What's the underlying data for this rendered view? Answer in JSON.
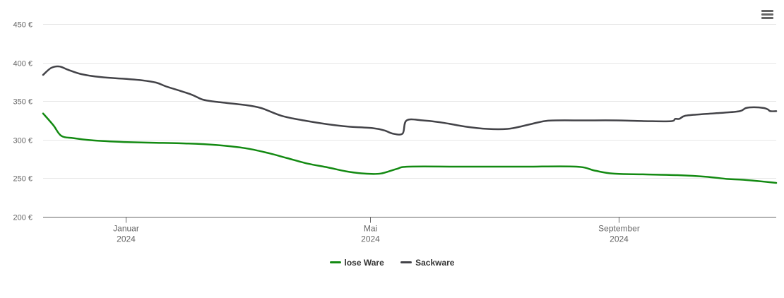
{
  "menu": {
    "icon": "hamburger-menu-icon"
  },
  "chart_data": {
    "type": "line",
    "title": "",
    "xlabel": "",
    "ylabel": "",
    "ylim": [
      200,
      450
    ],
    "yticks": [
      200,
      250,
      300,
      350,
      400,
      450
    ],
    "ytick_labels": [
      "200 €",
      "250 €",
      "300 €",
      "350 €",
      "400 €",
      "450 €"
    ],
    "xlim": [
      "2023-11-21",
      "2024-11-18"
    ],
    "xticks": [
      {
        "date": "2024-01-01",
        "label": "Januar",
        "year": "2024"
      },
      {
        "date": "2024-05-01",
        "label": "Mai",
        "year": "2024"
      },
      {
        "date": "2024-09-01",
        "label": "September",
        "year": "2024"
      }
    ],
    "grid": true,
    "legend_position": "bottom-center",
    "series": [
      {
        "name": "lose Ware",
        "color": "#138a12",
        "points": [
          [
            "2023-11-21",
            334
          ],
          [
            "2023-11-26",
            319
          ],
          [
            "2023-11-30",
            305
          ],
          [
            "2023-12-06",
            302
          ],
          [
            "2023-12-16",
            299
          ],
          [
            "2023-12-31",
            297
          ],
          [
            "2024-01-16",
            296
          ],
          [
            "2024-02-01",
            295
          ],
          [
            "2024-02-15",
            293
          ],
          [
            "2024-02-29",
            289
          ],
          [
            "2024-03-11",
            283
          ],
          [
            "2024-03-21",
            276
          ],
          [
            "2024-03-31",
            269
          ],
          [
            "2024-04-10",
            264
          ],
          [
            "2024-04-19",
            259
          ],
          [
            "2024-04-28",
            256
          ],
          [
            "2024-05-06",
            256
          ],
          [
            "2024-05-14",
            262
          ],
          [
            "2024-05-20",
            265
          ],
          [
            "2024-06-15",
            265
          ],
          [
            "2024-07-15",
            265
          ],
          [
            "2024-08-11",
            265
          ],
          [
            "2024-08-20",
            260
          ],
          [
            "2024-08-29",
            256
          ],
          [
            "2024-09-13",
            255
          ],
          [
            "2024-09-30",
            254
          ],
          [
            "2024-10-14",
            252
          ],
          [
            "2024-10-25",
            249
          ],
          [
            "2024-11-02",
            248
          ],
          [
            "2024-11-18",
            244
          ]
        ]
      },
      {
        "name": "Sackware",
        "color": "#434348",
        "points": [
          [
            "2023-11-21",
            384
          ],
          [
            "2023-11-25",
            393
          ],
          [
            "2023-11-29",
            395
          ],
          [
            "2023-12-03",
            391
          ],
          [
            "2023-12-10",
            385
          ],
          [
            "2023-12-20",
            381
          ],
          [
            "2023-12-31",
            379
          ],
          [
            "2024-01-09",
            377
          ],
          [
            "2024-01-16",
            374
          ],
          [
            "2024-01-21",
            369
          ],
          [
            "2024-02-02",
            359
          ],
          [
            "2024-02-08",
            352
          ],
          [
            "2024-02-15",
            349
          ],
          [
            "2024-02-29",
            345
          ],
          [
            "2024-03-08",
            341
          ],
          [
            "2024-03-18",
            331
          ],
          [
            "2024-03-29",
            325
          ],
          [
            "2024-04-10",
            320
          ],
          [
            "2024-04-20",
            317
          ],
          [
            "2024-05-02",
            315
          ],
          [
            "2024-05-08",
            312
          ],
          [
            "2024-05-12",
            308
          ],
          [
            "2024-05-17",
            308
          ],
          [
            "2024-05-19",
            325
          ],
          [
            "2024-05-27",
            325
          ],
          [
            "2024-06-06",
            322
          ],
          [
            "2024-06-17",
            317
          ],
          [
            "2024-06-28",
            314
          ],
          [
            "2024-07-08",
            314
          ],
          [
            "2024-07-16",
            318
          ],
          [
            "2024-07-26",
            324
          ],
          [
            "2024-08-01",
            325
          ],
          [
            "2024-08-15",
            325
          ],
          [
            "2024-08-31",
            325
          ],
          [
            "2024-09-16",
            324
          ],
          [
            "2024-09-27",
            324
          ],
          [
            "2024-09-29",
            327
          ],
          [
            "2024-10-01",
            327
          ],
          [
            "2024-10-04",
            331
          ],
          [
            "2024-10-12",
            333
          ],
          [
            "2024-10-23",
            335
          ],
          [
            "2024-10-31",
            337
          ],
          [
            "2024-11-03",
            341
          ],
          [
            "2024-11-07",
            342
          ],
          [
            "2024-11-12",
            341
          ],
          [
            "2024-11-14",
            339
          ],
          [
            "2024-11-15",
            337
          ],
          [
            "2024-11-18",
            337
          ]
        ]
      }
    ]
  }
}
